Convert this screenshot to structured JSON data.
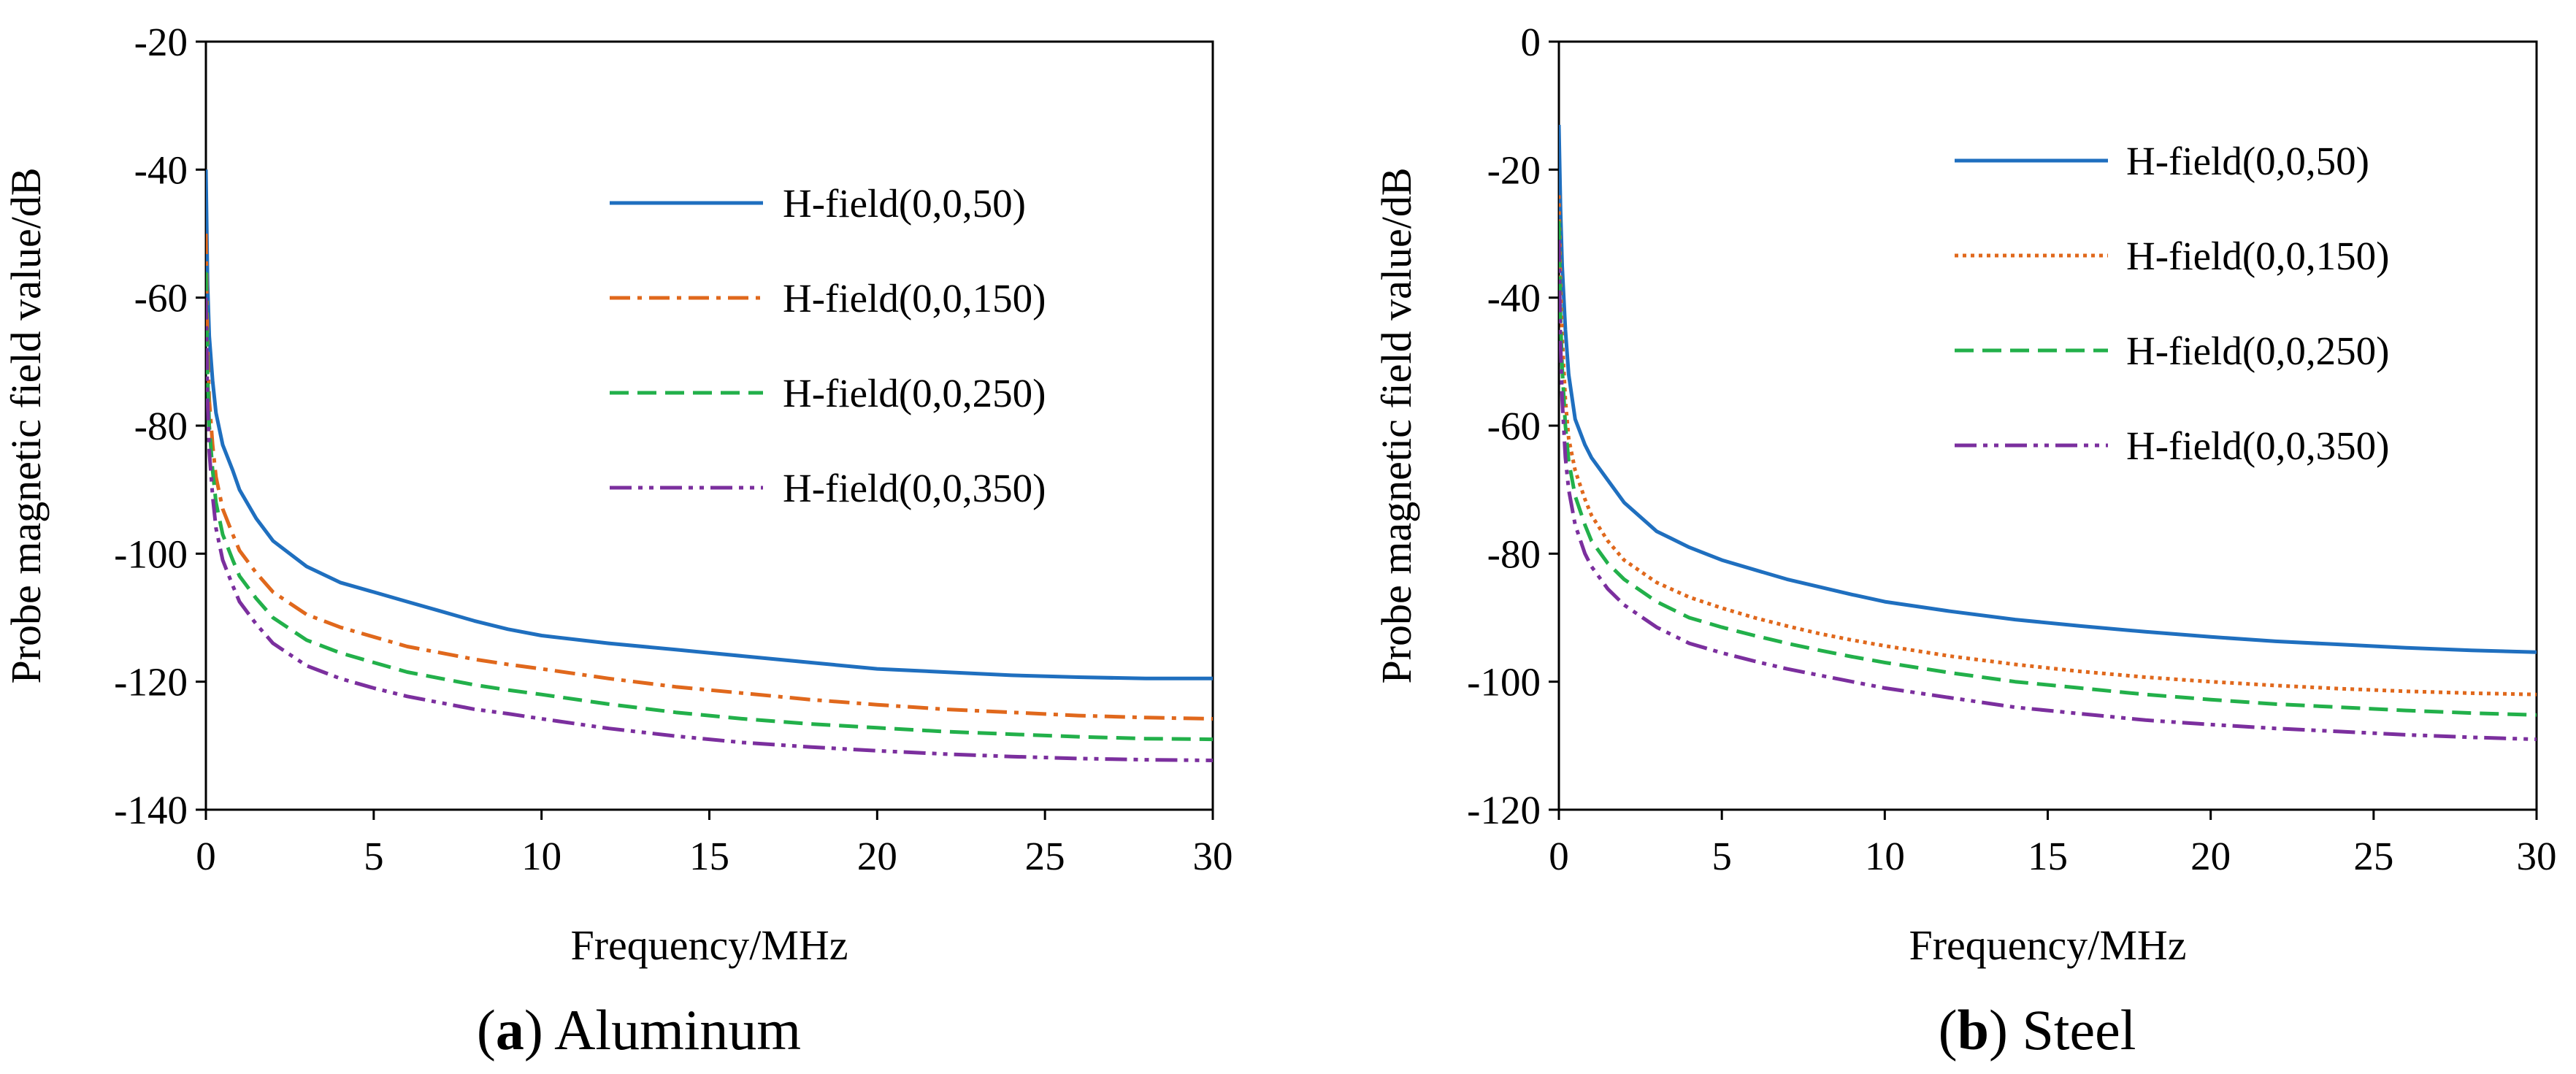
{
  "chart_data": [
    {
      "type": "line",
      "caption_label": "a",
      "caption_text": "Aluminum",
      "xlabel": "Frequency/MHz",
      "ylabel": "Probe magnetic field value/dB",
      "xlim": [
        0,
        30
      ],
      "ylim": [
        -140,
        -20
      ],
      "xticks": [
        0,
        5,
        10,
        15,
        20,
        25,
        30
      ],
      "yticks": [
        -20,
        -40,
        -60,
        -80,
        -100,
        -120,
        -140
      ],
      "legend_position": "top-right",
      "series": [
        {
          "name": "H-field(0,0,50)",
          "color": "#1f6fbf",
          "dash": "solid",
          "x": [
            0,
            0.05,
            0.1,
            0.2,
            0.3,
            0.5,
            0.8,
            1,
            1.5,
            2,
            3,
            4,
            5,
            6,
            7,
            8,
            9,
            10,
            12,
            14,
            16,
            18,
            20,
            22,
            24,
            26,
            28,
            30
          ],
          "y": [
            -40,
            -58,
            -66,
            -73,
            -78,
            -83,
            -87,
            -90,
            -94.5,
            -98,
            -102,
            -104.5,
            -106,
            -107.5,
            -109,
            -110.5,
            -111.8,
            -112.8,
            -114,
            -115,
            -116,
            -117,
            -118,
            -118.5,
            -119,
            -119.3,
            -119.5,
            -119.5
          ]
        },
        {
          "name": "H-field(0,0,150)",
          "color": "#e0681c",
          "dash": "dashdot",
          "x": [
            0,
            0.05,
            0.1,
            0.2,
            0.3,
            0.5,
            0.8,
            1,
            1.5,
            2,
            3,
            4,
            5,
            6,
            7,
            8,
            9,
            10,
            12,
            14,
            16,
            18,
            20,
            22,
            24,
            26,
            28,
            30
          ],
          "y": [
            -50,
            -68,
            -76,
            -83,
            -88,
            -93,
            -97,
            -99.5,
            -103,
            -106,
            -109.5,
            -111.5,
            -113,
            -114.5,
            -115.5,
            -116.5,
            -117.3,
            -118,
            -119.5,
            -120.8,
            -121.8,
            -122.8,
            -123.6,
            -124.3,
            -124.8,
            -125.3,
            -125.6,
            -125.8
          ]
        },
        {
          "name": "H-field(0,0,250)",
          "color": "#22b04a",
          "dash": "dashed",
          "x": [
            0,
            0.05,
            0.1,
            0.2,
            0.3,
            0.5,
            0.8,
            1,
            1.5,
            2,
            3,
            4,
            5,
            6,
            7,
            8,
            9,
            10,
            12,
            14,
            16,
            18,
            20,
            22,
            24,
            26,
            28,
            30
          ],
          "y": [
            -56,
            -72,
            -80,
            -87,
            -92,
            -97,
            -101,
            -103.5,
            -107,
            -110,
            -113.5,
            -115.5,
            -117,
            -118.5,
            -119.5,
            -120.5,
            -121.3,
            -122,
            -123.5,
            -124.8,
            -125.8,
            -126.6,
            -127.2,
            -127.8,
            -128.2,
            -128.6,
            -128.9,
            -129
          ]
        },
        {
          "name": "H-field(0,0,350)",
          "color": "#7b2f9e",
          "dash": "dashdotdot",
          "x": [
            0,
            0.05,
            0.1,
            0.2,
            0.3,
            0.5,
            0.8,
            1,
            1.5,
            2,
            3,
            4,
            5,
            6,
            7,
            8,
            9,
            10,
            12,
            14,
            16,
            18,
            20,
            22,
            24,
            26,
            28,
            30
          ],
          "y": [
            -60,
            -76,
            -84,
            -91,
            -96,
            -101,
            -105,
            -107.5,
            -111,
            -114,
            -117.5,
            -119.5,
            -121,
            -122.3,
            -123.3,
            -124.3,
            -125,
            -125.8,
            -127.3,
            -128.5,
            -129.5,
            -130.2,
            -130.8,
            -131.3,
            -131.7,
            -132,
            -132.2,
            -132.3
          ]
        }
      ]
    },
    {
      "type": "line",
      "caption_label": "b",
      "caption_text": "Steel",
      "xlabel": "Frequency/MHz",
      "ylabel": "Probe magnetic field value/dB",
      "xlim": [
        0,
        30
      ],
      "ylim": [
        -120,
        0
      ],
      "xticks": [
        0,
        5,
        10,
        15,
        20,
        25,
        30
      ],
      "yticks": [
        0,
        -20,
        -40,
        -60,
        -80,
        -100,
        -120
      ],
      "legend_position": "top-right",
      "series": [
        {
          "name": "H-field(0,0,50)",
          "color": "#1f6fbf",
          "dash": "solid",
          "x": [
            0,
            0.05,
            0.1,
            0.2,
            0.3,
            0.5,
            0.8,
            1,
            1.5,
            2,
            3,
            4,
            5,
            6,
            7,
            8,
            9,
            10,
            12,
            14,
            16,
            18,
            20,
            22,
            24,
            26,
            28,
            30
          ],
          "y": [
            -13,
            -26,
            -35,
            -45,
            -52,
            -59,
            -63,
            -65,
            -68.5,
            -72,
            -76.5,
            -79,
            -81,
            -82.5,
            -84,
            -85.2,
            -86.4,
            -87.5,
            -89,
            -90.3,
            -91.3,
            -92.2,
            -93,
            -93.7,
            -94.2,
            -94.7,
            -95.1,
            -95.4
          ]
        },
        {
          "name": "H-field(0,0,150)",
          "color": "#e0681c",
          "dash": "dotted",
          "x": [
            0,
            0.05,
            0.1,
            0.2,
            0.3,
            0.5,
            0.8,
            1,
            1.5,
            2,
            3,
            4,
            5,
            6,
            7,
            8,
            9,
            10,
            12,
            14,
            16,
            18,
            20,
            22,
            24,
            26,
            28,
            30
          ],
          "y": [
            -24,
            -38,
            -46,
            -56,
            -62,
            -67,
            -71.5,
            -74,
            -78,
            -81,
            -84.5,
            -86.8,
            -88.5,
            -90,
            -91.3,
            -92.5,
            -93.5,
            -94.4,
            -96,
            -97.3,
            -98.4,
            -99.3,
            -100,
            -100.6,
            -101.1,
            -101.5,
            -101.8,
            -102
          ]
        },
        {
          "name": "H-field(0,0,250)",
          "color": "#22b04a",
          "dash": "dashed",
          "x": [
            0,
            0.05,
            0.1,
            0.2,
            0.3,
            0.5,
            0.8,
            1,
            1.5,
            2,
            3,
            4,
            5,
            6,
            7,
            8,
            9,
            10,
            12,
            14,
            16,
            18,
            20,
            22,
            24,
            26,
            28,
            30
          ],
          "y": [
            -28,
            -43,
            -51,
            -60,
            -65.5,
            -71,
            -75.5,
            -78,
            -81.5,
            -84,
            -87.5,
            -90,
            -91.5,
            -92.8,
            -94,
            -95.1,
            -96.1,
            -97,
            -98.6,
            -100,
            -101,
            -102,
            -102.8,
            -103.5,
            -104,
            -104.5,
            -104.9,
            -105.2
          ]
        },
        {
          "name": "H-field(0,0,350)",
          "color": "#7b2f9e",
          "dash": "dashdotdot",
          "x": [
            0,
            0.05,
            0.1,
            0.2,
            0.3,
            0.5,
            0.8,
            1,
            1.5,
            2,
            3,
            4,
            5,
            6,
            7,
            8,
            9,
            10,
            12,
            14,
            16,
            18,
            20,
            22,
            24,
            26,
            28,
            30
          ],
          "y": [
            -31,
            -47,
            -56,
            -65,
            -70,
            -75.5,
            -80,
            -82,
            -85.5,
            -88,
            -91.5,
            -94,
            -95.5,
            -96.8,
            -98,
            -99,
            -100,
            -101,
            -102.5,
            -104,
            -105,
            -106,
            -106.7,
            -107.3,
            -107.8,
            -108.3,
            -108.7,
            -109
          ]
        }
      ]
    }
  ]
}
